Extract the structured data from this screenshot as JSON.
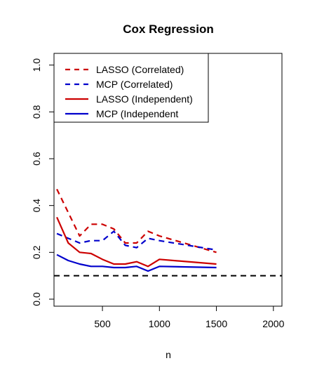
{
  "chart_data": {
    "type": "line",
    "title": "Cox Regression",
    "xlabel": "n",
    "ylabel": "",
    "xlim": [
      75,
      2075
    ],
    "ylim": [
      -0.03,
      1.05
    ],
    "x_ticks": [
      500,
      1000,
      1500,
      2000
    ],
    "y_ticks": [
      0.0,
      0.2,
      0.4,
      0.6,
      0.8,
      1.0
    ],
    "x_tick_labels": [
      "500",
      "1000",
      "1500",
      "2000"
    ],
    "y_tick_labels": [
      "0.0",
      "0.2",
      "0.4",
      "0.6",
      "0.8",
      "1.0"
    ],
    "grid": false,
    "legend_position": "top-left",
    "x": [
      100,
      200,
      300,
      400,
      500,
      600,
      700,
      800,
      900,
      1000,
      1500
    ],
    "series": [
      {
        "name": "LASSO (Correlated)",
        "color": "#cc0000",
        "dash": "dashed",
        "values": [
          0.47,
          0.37,
          0.27,
          0.32,
          0.32,
          0.3,
          0.24,
          0.24,
          0.29,
          0.27,
          0.2
        ]
      },
      {
        "name": "MCP (Correlated)",
        "color": "#0000cc",
        "dash": "dashed",
        "values": [
          0.28,
          0.26,
          0.24,
          0.25,
          0.25,
          0.29,
          0.23,
          0.22,
          0.26,
          0.25,
          0.21
        ]
      },
      {
        "name": "LASSO (Independent)",
        "color": "#cc0000",
        "dash": "solid",
        "values": [
          0.35,
          0.24,
          0.2,
          0.195,
          0.17,
          0.15,
          0.15,
          0.16,
          0.14,
          0.17,
          0.15
        ]
      },
      {
        "name": "MCP (Independent",
        "color": "#0000cc",
        "dash": "solid",
        "values": [
          0.19,
          0.165,
          0.15,
          0.14,
          0.14,
          0.135,
          0.135,
          0.14,
          0.12,
          0.14,
          0.135
        ]
      }
    ],
    "reference_line": {
      "y": 0.1,
      "color": "#000000",
      "dash": "dashed"
    }
  }
}
